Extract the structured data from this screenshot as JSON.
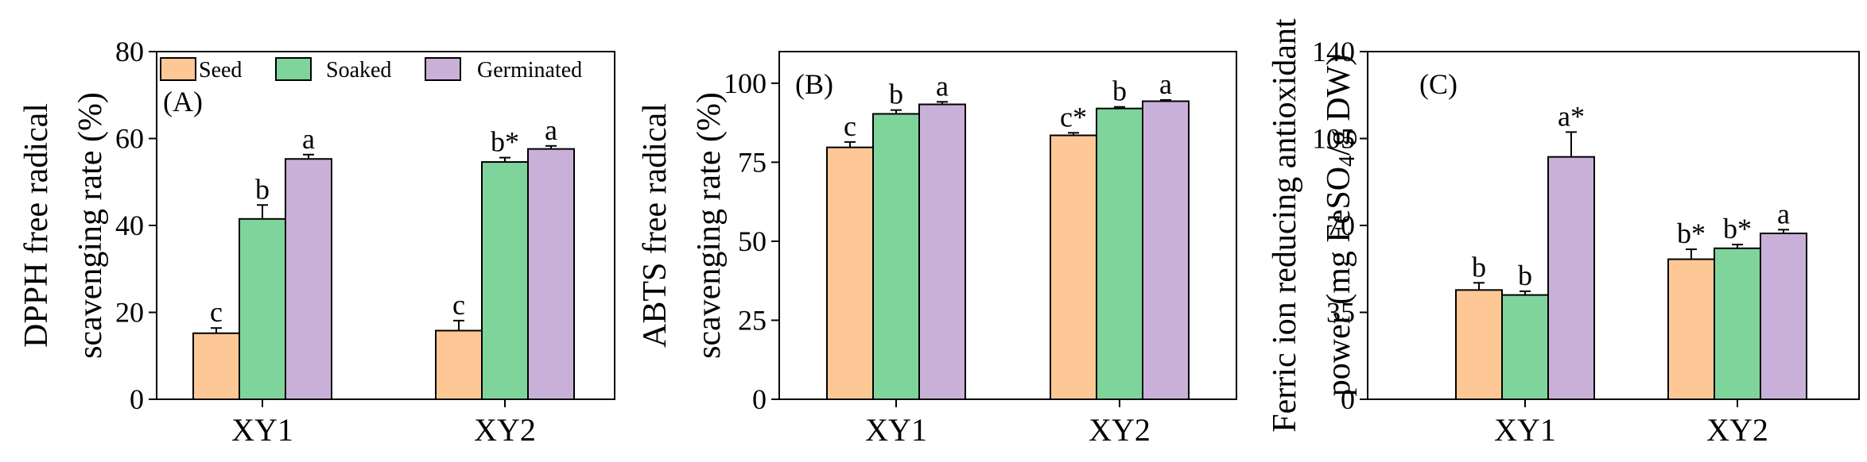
{
  "colors": {
    "Seed": "#fdc896",
    "Soaked": "#7fd49c",
    "Germinated": "#c9b0d9",
    "axis": "#000000"
  },
  "legend": {
    "placement": "top",
    "entries": [
      "Seed",
      "Soaked",
      "Germinated"
    ]
  },
  "chart_data": [
    {
      "type": "bar",
      "panel_label": "(A)",
      "ylabel": [
        "DPPH free radical",
        "scavenging rate (%)"
      ],
      "categories": [
        "XY1",
        "XY2"
      ],
      "ylim": [
        0,
        80
      ],
      "yticks": [
        0,
        20,
        40,
        60,
        80
      ],
      "series": [
        {
          "name": "Seed",
          "values": [
            15.2,
            15.8
          ],
          "errors": [
            1.2,
            2.3
          ],
          "labels": [
            "c",
            "c"
          ]
        },
        {
          "name": "Soaked",
          "values": [
            41.5,
            54.6
          ],
          "errors": [
            3.2,
            1.0
          ],
          "labels": [
            "b",
            "b*"
          ]
        },
        {
          "name": "Germinated",
          "values": [
            55.3,
            57.6
          ],
          "errors": [
            1.0,
            0.7
          ],
          "labels": [
            "a",
            "a"
          ]
        }
      ]
    },
    {
      "type": "bar",
      "panel_label": "(B)",
      "ylabel": [
        "ABTS free radical",
        "scavenging rate (%)"
      ],
      "categories": [
        "XY1",
        "XY2"
      ],
      "ylim": [
        0,
        110
      ],
      "yticks": [
        0,
        25,
        50,
        75,
        100
      ],
      "series": [
        {
          "name": "Seed",
          "values": [
            79.7,
            83.5
          ],
          "errors": [
            1.7,
            0.8
          ],
          "labels": [
            "c",
            "c*"
          ]
        },
        {
          "name": "Soaked",
          "values": [
            90.3,
            92.0
          ],
          "errors": [
            1.2,
            0.5
          ],
          "labels": [
            "b",
            "b"
          ]
        },
        {
          "name": "Germinated",
          "values": [
            93.3,
            94.3
          ],
          "errors": [
            0.8,
            0.4
          ],
          "labels": [
            "a",
            "a"
          ]
        }
      ]
    },
    {
      "type": "bar",
      "panel_label": "(C)",
      "ylabel": [
        "Ferric ion reducing antioxidant",
        "power (mg FeSO",
        "4",
        "/g DW)"
      ],
      "categories": [
        "XY1",
        "XY2"
      ],
      "ylim": [
        0,
        140
      ],
      "yticks": [
        0,
        35,
        70,
        105,
        140
      ],
      "series": [
        {
          "name": "Seed",
          "values": [
            44.0,
            56.4
          ],
          "errors": [
            2.9,
            4.0
          ],
          "labels": [
            "b",
            "b*"
          ]
        },
        {
          "name": "Soaked",
          "values": [
            42.0,
            60.8
          ],
          "errors": [
            1.5,
            1.5
          ],
          "labels": [
            "b",
            "b*"
          ]
        },
        {
          "name": "Germinated",
          "values": [
            97.6,
            66.8
          ],
          "errors": [
            10.0,
            1.5
          ],
          "labels": [
            "a*",
            "a"
          ]
        }
      ]
    }
  ]
}
